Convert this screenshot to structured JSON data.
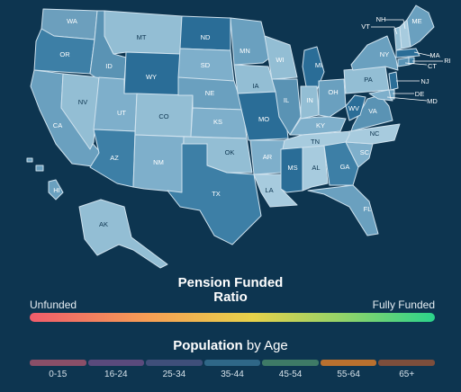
{
  "states": [
    {
      "abbr": "WA",
      "fill": "#6c9fbd"
    },
    {
      "abbr": "OR",
      "fill": "#3d7fa6"
    },
    {
      "abbr": "CA",
      "fill": "#6aa0bf"
    },
    {
      "abbr": "NV",
      "fill": "#93bed4"
    },
    {
      "abbr": "ID",
      "fill": "#5a93b4"
    },
    {
      "abbr": "MT",
      "fill": "#93bed4"
    },
    {
      "abbr": "WY",
      "fill": "#2a6d97"
    },
    {
      "abbr": "UT",
      "fill": "#7eafcb"
    },
    {
      "abbr": "AZ",
      "fill": "#3d7fa6"
    },
    {
      "abbr": "CO",
      "fill": "#93bed4"
    },
    {
      "abbr": "NM",
      "fill": "#7eafcb"
    },
    {
      "abbr": "ND",
      "fill": "#2a6d97"
    },
    {
      "abbr": "SD",
      "fill": "#7eafcb"
    },
    {
      "abbr": "NE",
      "fill": "#6aa0bf"
    },
    {
      "abbr": "KS",
      "fill": "#7eafcb"
    },
    {
      "abbr": "OK",
      "fill": "#93bed4"
    },
    {
      "abbr": "TX",
      "fill": "#3d7fa6"
    },
    {
      "abbr": "MN",
      "fill": "#6aa0bf"
    },
    {
      "abbr": "IA",
      "fill": "#93bed4"
    },
    {
      "abbr": "MO",
      "fill": "#2a6d97"
    },
    {
      "abbr": "AR",
      "fill": "#7eafcb"
    },
    {
      "abbr": "LA",
      "fill": "#a7cbde"
    },
    {
      "abbr": "WI",
      "fill": "#93bed4"
    },
    {
      "abbr": "IL",
      "fill": "#5a93b4"
    },
    {
      "abbr": "MI",
      "fill": "#2a6d97"
    },
    {
      "abbr": "IN",
      "fill": "#93bed4"
    },
    {
      "abbr": "OH",
      "fill": "#6aa0bf"
    },
    {
      "abbr": "KY",
      "fill": "#7eafcb"
    },
    {
      "abbr": "TN",
      "fill": "#a7cbde"
    },
    {
      "abbr": "MS",
      "fill": "#2a6d97"
    },
    {
      "abbr": "AL",
      "fill": "#a7cbde"
    },
    {
      "abbr": "GA",
      "fill": "#3d7fa6"
    },
    {
      "abbr": "FL",
      "fill": "#6aa0bf"
    },
    {
      "abbr": "SC",
      "fill": "#7eafcb"
    },
    {
      "abbr": "NC",
      "fill": "#a7cbde"
    },
    {
      "abbr": "VA",
      "fill": "#5a93b4"
    },
    {
      "abbr": "WV",
      "fill": "#2a6d97"
    },
    {
      "abbr": "PA",
      "fill": "#93bed4"
    },
    {
      "abbr": "NY",
      "fill": "#6aa0bf"
    },
    {
      "abbr": "MD",
      "fill": "#7eafcb"
    },
    {
      "abbr": "DE",
      "fill": "#6aa0bf"
    },
    {
      "abbr": "NJ",
      "fill": "#2a6d97"
    },
    {
      "abbr": "CT",
      "fill": "#5a93b4"
    },
    {
      "abbr": "RI",
      "fill": "#3d7fa6"
    },
    {
      "abbr": "MA",
      "fill": "#2a6d97"
    },
    {
      "abbr": "VT",
      "fill": "#93bed4"
    },
    {
      "abbr": "NH",
      "fill": "#a7cbde"
    },
    {
      "abbr": "ME",
      "fill": "#6aa0bf"
    },
    {
      "abbr": "AK",
      "fill": "#93bed4"
    },
    {
      "abbr": "HI",
      "fill": "#6aa0bf"
    }
  ],
  "legend": {
    "title_line1": "Pension Funded",
    "title_line2": "Ratio",
    "low_label": "Unfunded",
    "high_label": "Fully Funded"
  },
  "population": {
    "title_bold": "Population",
    "title_rest": " by Age",
    "bins": [
      {
        "label": "0-15",
        "color": "#8a4f68"
      },
      {
        "label": "16-24",
        "color": "#5a4a7c"
      },
      {
        "label": "25-34",
        "color": "#3f4f7a"
      },
      {
        "label": "35-44",
        "color": "#2f6787"
      },
      {
        "label": "45-54",
        "color": "#3e7a66"
      },
      {
        "label": "55-64",
        "color": "#b8702f"
      },
      {
        "label": "65+",
        "color": "#7c4e3c"
      }
    ]
  }
}
